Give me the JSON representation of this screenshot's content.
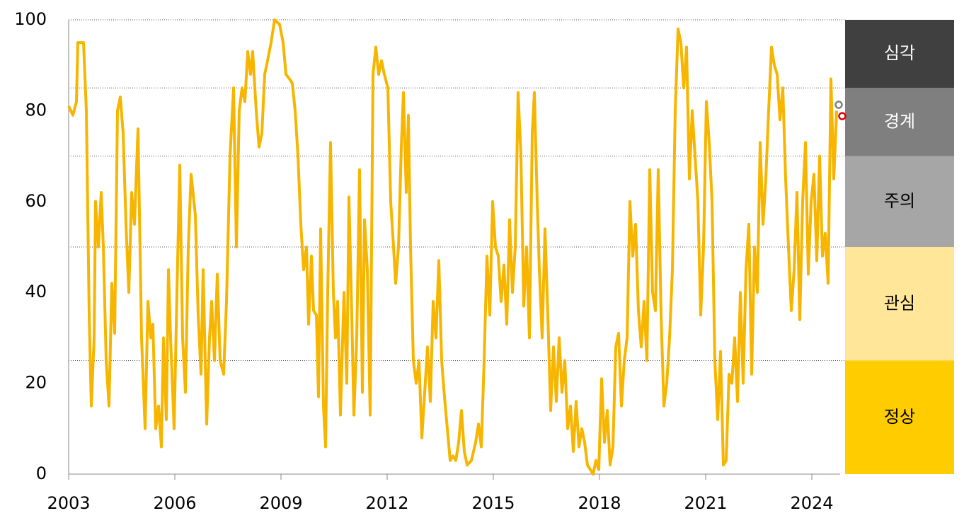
{
  "chart_data": {
    "type": "line",
    "x": [
      2003.0,
      2003.12,
      2003.22,
      2003.26,
      2003.42,
      2003.5,
      2003.58,
      2003.64,
      2003.72,
      2003.76,
      2003.84,
      2003.92,
      2003.98,
      2004.06,
      2004.14,
      2004.22,
      2004.3,
      2004.38,
      2004.46,
      2004.54,
      2004.62,
      2004.7,
      2004.78,
      2004.86,
      2004.96,
      2005.06,
      2005.16,
      2005.24,
      2005.32,
      2005.38,
      2005.46,
      2005.54,
      2005.62,
      2005.68,
      2005.76,
      2005.82,
      2005.88,
      2005.98,
      2006.06,
      2006.14,
      2006.22,
      2006.3,
      2006.38,
      2006.46,
      2006.58,
      2006.66,
      2006.74,
      2006.8,
      2006.9,
      2006.98,
      2007.04,
      2007.12,
      2007.2,
      2007.28,
      2007.38,
      2007.46,
      2007.56,
      2007.66,
      2007.74,
      2007.82,
      2007.9,
      2007.98,
      2008.06,
      2008.14,
      2008.2,
      2008.3,
      2008.38,
      2008.46,
      2008.54,
      2008.62,
      2008.72,
      2008.82,
      2008.96,
      2009.06,
      2009.14,
      2009.24,
      2009.32,
      2009.4,
      2009.48,
      2009.56,
      2009.64,
      2009.72,
      2009.78,
      2009.86,
      2009.92,
      2010.0,
      2010.06,
      2010.12,
      2010.2,
      2010.26,
      2010.32,
      2010.4,
      2010.48,
      2010.54,
      2010.6,
      2010.68,
      2010.78,
      2010.86,
      2010.92,
      2011.0,
      2011.06,
      2011.14,
      2011.22,
      2011.3,
      2011.36,
      2011.44,
      2011.52,
      2011.6,
      2011.68,
      2011.76,
      2011.84,
      2011.92,
      2012.02,
      2012.1,
      2012.18,
      2012.24,
      2012.32,
      2012.4,
      2012.46,
      2012.54,
      2012.6,
      2012.66,
      2012.74,
      2012.82,
      2012.9,
      2012.98,
      2013.06,
      2013.14,
      2013.22,
      2013.3,
      2013.38,
      2013.46,
      2013.54,
      2013.62,
      2013.7,
      2013.78,
      2013.86,
      2013.94,
      2014.02,
      2014.1,
      2014.18,
      2014.26,
      2014.38,
      2014.5,
      2014.58,
      2014.66,
      2014.74,
      2014.82,
      2014.9,
      2014.98,
      2015.06,
      2015.14,
      2015.22,
      2015.3,
      2015.38,
      2015.46,
      2015.54,
      2015.62,
      2015.7,
      2015.78,
      2015.86,
      2015.94,
      2016.02,
      2016.1,
      2016.16,
      2016.24,
      2016.3,
      2016.38,
      2016.46,
      2016.54,
      2016.62,
      2016.7,
      2016.78,
      2016.86,
      2016.94,
      2017.02,
      2017.1,
      2017.18,
      2017.26,
      2017.34,
      2017.42,
      2017.5,
      2017.58,
      2017.66,
      2017.74,
      2017.82,
      2017.9,
      2017.98,
      2018.06,
      2018.14,
      2018.22,
      2018.3,
      2018.38,
      2018.46,
      2018.54,
      2018.62,
      2018.7,
      2018.78,
      2018.86,
      2018.94,
      2019.02,
      2019.1,
      2019.18,
      2019.26,
      2019.34,
      2019.42,
      2019.5,
      2019.58,
      2019.66,
      2019.74,
      2019.82,
      2019.9,
      2019.98,
      2020.06,
      2020.14,
      2020.22,
      2020.3,
      2020.38,
      2020.46,
      2020.54,
      2020.62,
      2020.7,
      2020.78,
      2020.86,
      2020.94,
      2021.02,
      2021.1,
      2021.18,
      2021.26,
      2021.34,
      2021.42,
      2021.5,
      2021.58,
      2021.66,
      2021.74,
      2021.82,
      2021.9,
      2021.98,
      2022.06,
      2022.14,
      2022.22,
      2022.3,
      2022.38,
      2022.46,
      2022.54,
      2022.62,
      2022.7,
      2022.78,
      2022.86,
      2022.94,
      2023.02,
      2023.1,
      2023.18,
      2023.26,
      2023.34,
      2023.42,
      2023.5,
      2023.58,
      2023.66,
      2023.74,
      2023.82,
      2023.9,
      2023.98,
      2024.06,
      2024.14,
      2024.22,
      2024.3,
      2024.38,
      2024.46,
      2024.54,
      2024.62,
      2024.7
    ],
    "series": [
      {
        "color": "#f7b500",
        "values": [
          81,
          79,
          82,
          95,
          95,
          80,
          35,
          15,
          30,
          60,
          50,
          62,
          50,
          25,
          15,
          42,
          31,
          80,
          83,
          75,
          55,
          40,
          62,
          55,
          76,
          30,
          10,
          38,
          30,
          33,
          10,
          15,
          6,
          30,
          12,
          45,
          30,
          10,
          40,
          68,
          30,
          18,
          50,
          66,
          57,
          35,
          22,
          45,
          11,
          30,
          38,
          25,
          44,
          25,
          22,
          38,
          70,
          85,
          50,
          80,
          85,
          82,
          93,
          88,
          93,
          80,
          72,
          75,
          88,
          91,
          95,
          100,
          99,
          95,
          88,
          87,
          86,
          80,
          70,
          55,
          45,
          50,
          33,
          48,
          36,
          35,
          17,
          54,
          15,
          6,
          40,
          73,
          40,
          30,
          38,
          13,
          40,
          20,
          61,
          35,
          13,
          30,
          67,
          18,
          56,
          45,
          13,
          88,
          94,
          88,
          91,
          88,
          85,
          60,
          50,
          42,
          50,
          72,
          84,
          62,
          79,
          50,
          25,
          20,
          25,
          8,
          18,
          28,
          16,
          38,
          30,
          47,
          25,
          17,
          10,
          3,
          4,
          3,
          7,
          14,
          5,
          2,
          3,
          7,
          11,
          6,
          25,
          48,
          35,
          60,
          50,
          48,
          38,
          46,
          33,
          56,
          40,
          50,
          84,
          70,
          37,
          50,
          30,
          75,
          84,
          60,
          45,
          30,
          54,
          35,
          14,
          28,
          16,
          30,
          18,
          25,
          10,
          15,
          5,
          16,
          6,
          10,
          7,
          2,
          1,
          0,
          3,
          1,
          21,
          7,
          14,
          2,
          6,
          28,
          31,
          15,
          25,
          30,
          60,
          48,
          55,
          36,
          28,
          38,
          25,
          67,
          40,
          36,
          67,
          35,
          15,
          20,
          30,
          45,
          80,
          98,
          95,
          85,
          94,
          65,
          80,
          70,
          60,
          35,
          50,
          82,
          73,
          60,
          25,
          12,
          27,
          2,
          3,
          22,
          20,
          30,
          16,
          40,
          20,
          45,
          55,
          22,
          50,
          40,
          73,
          55,
          65,
          80,
          94,
          90,
          88,
          78,
          85,
          65,
          50,
          36,
          45,
          62,
          34,
          60,
          73,
          44,
          60,
          66,
          47,
          70,
          48,
          53,
          42,
          87,
          65,
          80
        ]
      }
    ],
    "markers": [
      {
        "x": 2024.76,
        "value": 81.3,
        "color": "#808080"
      },
      {
        "x": 2024.86,
        "value": 78.8,
        "color": "#e00000"
      }
    ],
    "zones": [
      {
        "label": "정상",
        "from": 0,
        "to": 25,
        "color": "#ffcc00"
      },
      {
        "label": "관심",
        "from": 25,
        "to": 50,
        "color": "#ffe699"
      },
      {
        "label": "주의",
        "from": 50,
        "to": 70,
        "color": "#a6a6a6"
      },
      {
        "label": "경계",
        "from": 70,
        "to": 85,
        "color": "#7f7f7f"
      },
      {
        "label": "심각",
        "from": 85,
        "to": 100,
        "color": "#404040"
      }
    ],
    "xlim": [
      2003,
      2024.8
    ],
    "xticks": [
      2003,
      2006,
      2009,
      2012,
      2015,
      2018,
      2021,
      2024
    ],
    "ylim": [
      0,
      100
    ],
    "yticks": [
      0,
      20,
      40,
      60,
      80,
      100
    ],
    "grid": true
  }
}
